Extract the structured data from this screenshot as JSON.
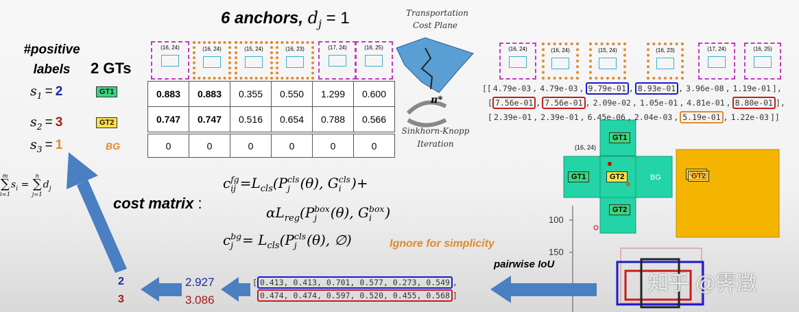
{
  "title": {
    "text": "6 anchors,",
    "var": "d",
    "sub": "j",
    "eq": "= 1"
  },
  "transport": {
    "title": [
      "Transportation",
      "Cost Plane"
    ],
    "pi": "π*",
    "method": [
      "Sinkhorn-Knopp",
      "Iteration"
    ]
  },
  "left": {
    "positive_labels": [
      "#positive",
      "labels"
    ],
    "gts": "2 GTs",
    "rows": [
      {
        "s": "s",
        "i": "1",
        "eq": "=",
        "n": "2",
        "tag": "GT1"
      },
      {
        "s": "s",
        "i": "2",
        "eq": "=",
        "n": "3",
        "tag": "GT2"
      },
      {
        "s": "s",
        "i": "3",
        "eq": "=",
        "n": "1",
        "tag": "BG"
      }
    ]
  },
  "anchors": [
    "(16, 24)",
    "(16, 24)",
    "(15, 24)",
    "(16, 23)",
    "(17, 24)",
    "(16, 25)"
  ],
  "cost_table": {
    "rows": [
      [
        "0.883",
        "0.883",
        "0.355",
        "0.550",
        "1.299",
        "0.600"
      ],
      [
        "0.747",
        "0.747",
        "0.516",
        "0.654",
        "0.788",
        "0.566"
      ],
      [
        "0",
        "0",
        "0",
        "0",
        "0",
        "0"
      ]
    ]
  },
  "sum_formula": [
    "m",
    "∑",
    "i=1",
    "s",
    "i",
    "=",
    "n",
    "∑",
    "j=1",
    "d",
    "j"
  ],
  "cost_matrix": {
    "label": "cost matrix",
    "colon": ":",
    "lines": [
      [
        "c",
        "fg",
        "ij",
        "=L",
        "cls",
        "(P",
        "cls",
        "j",
        "(θ), G",
        "cls",
        "i",
        ")+"
      ],
      [
        "αL",
        "reg",
        "(P",
        "box",
        "j",
        "(θ), G",
        "box",
        "i",
        ")"
      ],
      [
        "c",
        "bg",
        "j",
        "= L",
        "cls",
        "(P",
        "cls",
        "j",
        "(θ), ∅)"
      ]
    ],
    "note": "Ignore for simplicity"
  },
  "assignment": {
    "anchors": [
      "(16, 24)",
      "(16, 24)",
      "(15, 24)",
      "(16, 23)",
      "(17, 24)",
      "(16, 25)"
    ],
    "sep": ",",
    "rows": [
      {
        "open": "[[",
        "values": [
          "4.79e-03",
          "4.79e-03",
          "9.79e-01",
          "8.93e-01",
          "3.96e-08",
          "1.19e-01"
        ],
        "close": "],"
      },
      {
        "open": "[",
        "values": [
          "7.56e-01",
          "7.56e-01",
          "2.09e-02",
          "1.05e-01",
          "4.81e-01",
          "8.80e-01"
        ],
        "close": "],"
      },
      {
        "open": "[",
        "values": [
          "2.39e-01",
          "2.39e-01",
          "6.45e-06",
          "2.04e-03",
          "5.19e-01",
          "1.22e-03"
        ],
        "close": "]]"
      }
    ]
  },
  "diagram": {
    "anchor": "(16, 24)",
    "cells": [
      "GT1",
      "GT1",
      "GT2",
      "BG",
      "GT2"
    ],
    "overlay": [
      "GT1",
      "GT2"
    ],
    "yticks": [
      "100",
      "150"
    ]
  },
  "iou": {
    "label": "pairwise IoU",
    "rows": [
      {
        "open": "[",
        "text": "0.413, 0.413, 0.701, 0.577, 0.273, 0.549",
        "close": ","
      },
      {
        "text": "0.474, 0.474, 0.597, 0.520, 0.455, 0.568",
        "close": "]"
      }
    ]
  },
  "totals": {
    "gts": [
      "2",
      "3"
    ],
    "sums": [
      "2.927",
      "3.086"
    ]
  },
  "watermark": "知乎 @霁澂"
}
